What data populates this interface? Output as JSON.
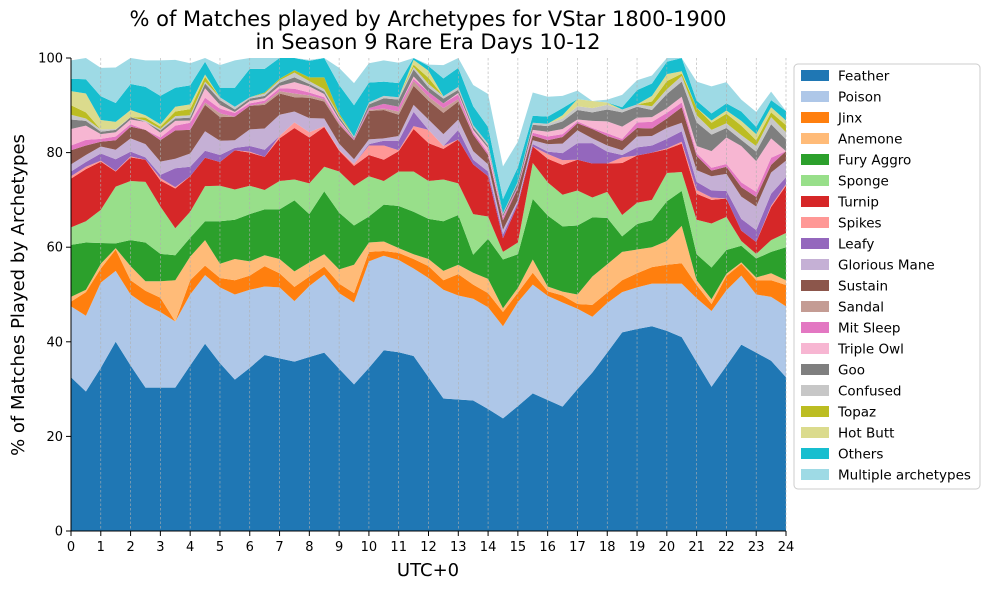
{
  "chart_data": {
    "type": "area",
    "title_lines": [
      "% of Matches played by Archetypes for VStar 1800-1900",
      "in Season 9 Rare Era Days 10-12"
    ],
    "xlabel": "UTC+0",
    "ylabel": "% of Matches Played by Archetypes",
    "xlim": [
      0,
      24
    ],
    "ylim": [
      0,
      100
    ],
    "x_ticks": [
      "0",
      "1",
      "2",
      "3",
      "4",
      "5",
      "6",
      "7",
      "8",
      "9",
      "10",
      "11",
      "12",
      "13",
      "14",
      "15",
      "16",
      "17",
      "18",
      "19",
      "20",
      "21",
      "22",
      "23",
      "24"
    ],
    "y_ticks": [
      "0",
      "20",
      "40",
      "60",
      "80",
      "100"
    ],
    "grid": "vertical dashed",
    "legend_position": "right",
    "x": [
      0,
      0.5,
      1,
      1.5,
      2,
      2.5,
      3,
      3.5,
      4,
      4.5,
      5,
      5.5,
      6,
      6.5,
      7,
      7.5,
      8,
      8.5,
      9,
      9.5,
      10,
      10.5,
      11,
      11.5,
      12,
      12.5,
      13,
      13.5,
      14,
      14.5,
      15,
      15.5,
      16,
      16.5,
      17,
      17.5,
      18,
      18.5,
      19,
      19.5,
      20,
      20.5,
      21,
      21.5,
      22,
      22.5,
      23,
      23.5,
      24
    ],
    "series": [
      {
        "name": "Feather",
        "color": "#1f77b4",
        "values": [
          32.5,
          29.5,
          34.5,
          40,
          35,
          30.3,
          30.3,
          30.3,
          35,
          39.6,
          35.5,
          32,
          34.5,
          37.2,
          36.5,
          35.8,
          36.8,
          37.7,
          34.3,
          31,
          34.5,
          38.2,
          37.8,
          37,
          32.5,
          28,
          27.8,
          27.6,
          25.8,
          23.8,
          26.4,
          29.1,
          27.7,
          26.3,
          30,
          33.5,
          37.7,
          42,
          42.7,
          43.3,
          42.3,
          41,
          35.7,
          30.5,
          34.9,
          39.4,
          37.7,
          36,
          32.5
        ]
      },
      {
        "name": "Poison",
        "color": "#aec7e8",
        "values": [
          15,
          16,
          18,
          15,
          15,
          17.5,
          16,
          14,
          15,
          14.5,
          16,
          18,
          16.5,
          14.5,
          15,
          12.8,
          15,
          16.5,
          16,
          17.3,
          22.5,
          20,
          19.5,
          18.5,
          21,
          23,
          22,
          21.5,
          21.5,
          19.5,
          22,
          23,
          22,
          22,
          17,
          11.8,
          10.5,
          8.5,
          8.8,
          9,
          10,
          11.3,
          13.5,
          16,
          16,
          14.6,
          12.3,
          13.5,
          15
        ]
      },
      {
        "name": "Jinx",
        "color": "#ff7f0e",
        "values": [
          1,
          5,
          3,
          4.5,
          3,
          3,
          3,
          0,
          3,
          2,
          2,
          3,
          3,
          4.3,
          3,
          3,
          2,
          1.7,
          2,
          2,
          2,
          1,
          1.5,
          2,
          2.5,
          2,
          4.5,
          3,
          3,
          3,
          2,
          2.5,
          1,
          1.5,
          1,
          2.5,
          2.2,
          2.5,
          3,
          3.5,
          4,
          4.3,
          2.8,
          1.5,
          3,
          2.5,
          3,
          3.5,
          4.5
        ]
      },
      {
        "name": "Anemone",
        "color": "#ffbb78",
        "values": [
          1,
          0.5,
          1,
          0.3,
          3,
          2,
          3.5,
          8.7,
          5,
          5.4,
          3,
          4.5,
          3,
          2.3,
          3,
          3.3,
          3,
          2.6,
          3,
          6,
          2,
          2,
          1,
          1,
          1.5,
          2,
          2,
          2.5,
          3,
          0.8,
          1,
          2.8,
          1,
          0.8,
          2,
          6,
          6,
          6,
          5,
          4.2,
          5,
          7.9,
          1,
          1,
          0.5,
          0.3,
          0.6,
          1.5,
          1
        ]
      },
      {
        "name": "Fury Aggro",
        "color": "#2ca02c",
        "values": [
          11,
          10,
          4.4,
          1,
          5.5,
          8.2,
          5.8,
          5.3,
          4,
          4,
          9,
          8.3,
          10,
          9.7,
          10.5,
          15,
          10.2,
          13.3,
          12,
          8.3,
          5.5,
          7.8,
          8.9,
          9,
          8.5,
          10.5,
          10.5,
          3.8,
          8.5,
          10.3,
          7.1,
          12.8,
          15,
          13.8,
          14.6,
          12.5,
          9.8,
          3.3,
          5.4,
          5.7,
          8.4,
          7.4,
          5.5,
          6.7,
          5,
          3.5,
          4,
          4.5,
          7
        ]
      },
      {
        "name": "Sponge",
        "color": "#98df8a",
        "values": [
          3.7,
          4.5,
          7,
          12,
          12.5,
          12.8,
          10,
          5.7,
          5.5,
          7.4,
          7.5,
          6.4,
          6,
          4.1,
          6,
          4.4,
          6.5,
          5.2,
          8.7,
          8.4,
          8.5,
          5,
          7.3,
          8.5,
          8,
          8.8,
          6.7,
          8.6,
          4.7,
          1.6,
          2.5,
          7.6,
          7,
          6.7,
          7.4,
          4.2,
          5.5,
          4.5,
          4.5,
          4.3,
          6,
          4,
          7.3,
          9.3,
          7,
          1,
          1,
          2.5,
          3
        ]
      },
      {
        "name": "Turnip",
        "color": "#d62728",
        "values": [
          10.3,
          11,
          10.2,
          3.2,
          5,
          4.7,
          5.5,
          8.4,
          7.5,
          6,
          5,
          8.3,
          7,
          7,
          9,
          10.9,
          9.7,
          8.4,
          4.4,
          4.2,
          4.5,
          4.5,
          4.3,
          9,
          8,
          6.5,
          9.3,
          10.5,
          8.5,
          2.9,
          8,
          3.5,
          5,
          6.3,
          6.5,
          7.2,
          6,
          11,
          10,
          10,
          5,
          6,
          5.5,
          5,
          3.9,
          2.2,
          2.5,
          7,
          10
        ]
      },
      {
        "name": "Spikes",
        "color": "#ff9896",
        "values": [
          0.5,
          0.5,
          0.2,
          0.1,
          0.2,
          0,
          0.5,
          0.3,
          0,
          0,
          0,
          0,
          0.2,
          0,
          0.5,
          1.2,
          1.1,
          0.2,
          0.2,
          0.4,
          2,
          3,
          0.2,
          0.6,
          2.8,
          0.6,
          0,
          0,
          0,
          0,
          0,
          0,
          1,
          1,
          0,
          0,
          0,
          1.2,
          0,
          0,
          0.2,
          0.4,
          0.8,
          0.5,
          0,
          0,
          0,
          0.3,
          0.3
        ]
      },
      {
        "name": "Leafy",
        "color": "#9467bd",
        "values": [
          1,
          1,
          1.5,
          2.5,
          1,
          0.5,
          0.7,
          4,
          2,
          1.5,
          1.5,
          0.5,
          1.2,
          1.5,
          0,
          0,
          0,
          0,
          0,
          0,
          0.3,
          1,
          2,
          3,
          0,
          0,
          2,
          1,
          1,
          0.8,
          0.5,
          0.5,
          0.5,
          1.5,
          3.5,
          4.3,
          2.5,
          0.5,
          1.7,
          1.5,
          2,
          2.2,
          1.7,
          1.5,
          1.6,
          2.5,
          2.5,
          2.5,
          1.5
        ]
      },
      {
        "name": "Glorious Mane",
        "color": "#c5b0d5",
        "values": [
          1.5,
          1.5,
          1.5,
          2,
          2.8,
          2.8,
          2.8,
          2,
          2.8,
          4.1,
          3,
          1.6,
          3.5,
          4.5,
          4.5,
          2.3,
          3,
          1.6,
          1.3,
          1,
          1,
          0.5,
          1,
          1.5,
          2.2,
          2.5,
          2.2,
          1.8,
          1.5,
          1,
          0.5,
          0.8,
          1.6,
          2,
          2.7,
          1,
          1.3,
          1,
          2.3,
          2,
          2.3,
          1.8,
          2.5,
          3,
          3.6,
          4.7,
          5,
          4.5,
          3.5
        ]
      },
      {
        "name": "Sustain",
        "color": "#8c564b",
        "values": [
          3,
          2,
          1,
          2,
          2.5,
          3,
          4.5,
          6,
          5,
          5.6,
          5,
          5,
          5,
          5,
          4.5,
          3,
          4.3,
          3.6,
          4,
          4,
          6,
          6,
          4.5,
          4,
          4,
          4.5,
          3.8,
          3.5,
          2,
          2,
          2.5,
          1,
          0.8,
          1.4,
          1.5,
          2,
          2,
          2,
          1.8,
          1.6,
          2,
          3.3,
          3,
          1.2,
          1.5,
          2,
          2,
          1.6,
          2
        ]
      },
      {
        "name": "Sandal",
        "color": "#c49c94",
        "values": [
          0,
          0,
          0,
          0,
          0,
          0,
          0,
          0,
          0,
          0.5,
          0.8,
          0,
          0,
          0.4,
          0.5,
          0.8,
          0.5,
          0.5,
          0.3,
          0,
          0.2,
          0.3,
          0.7,
          1,
          0.8,
          1,
          0.5,
          0,
          0,
          0,
          0,
          0,
          0,
          0,
          0,
          0,
          0,
          0,
          0,
          0,
          0,
          0,
          0,
          0,
          0,
          0,
          0,
          0,
          0
        ]
      },
      {
        "name": "Mit Sleep",
        "color": "#e377c2",
        "values": [
          1,
          1.2,
          0.6,
          0.8,
          0.5,
          0,
          0.6,
          1,
          1.5,
          1,
          1,
          0.8,
          0.5,
          0.5,
          0.6,
          1,
          0.6,
          0.4,
          0.4,
          0.3,
          0.4,
          1,
          1,
          0.5,
          1,
          1,
          1,
          0.5,
          0.5,
          0.6,
          0.3,
          0.6,
          0.8,
          0.6,
          0.4,
          0.2,
          0.6,
          0.4,
          1.2,
          1.4,
          1.2,
          1,
          0.6,
          0.6,
          0.6,
          1,
          1.1,
          1.5,
          0
        ]
      },
      {
        "name": "Triple Owl",
        "color": "#f7b6d2",
        "values": [
          3.5,
          3,
          1,
          0.9,
          1,
          1.7,
          1,
          1,
          0.5,
          2,
          0.8,
          0.2,
          0.5,
          0.5,
          0.5,
          1.4,
          1.3,
          0.7,
          0.4,
          0,
          0,
          0,
          0,
          0.5,
          0,
          0,
          0.3,
          0.5,
          1,
          0.2,
          0,
          0.6,
          1,
          1.1,
          0.4,
          1.5,
          2.5,
          2.6,
          1,
          1,
          1,
          1.2,
          1.5,
          3.5,
          5.6,
          7.7,
          6.5,
          4.1,
          0
        ]
      },
      {
        "name": "Goo",
        "color": "#7f7f7f",
        "values": [
          2,
          1,
          0.5,
          0.5,
          0.5,
          0,
          0.5,
          0.5,
          0.6,
          1,
          1,
          0.5,
          0.5,
          0.5,
          0.7,
          1,
          0.5,
          0.5,
          0.5,
          0.2,
          0.8,
          1.2,
          1.5,
          1.5,
          1,
          1,
          0.7,
          0.5,
          0.4,
          0.4,
          0.8,
          1.1,
          1.2,
          1.6,
          2,
          1.8,
          2.5,
          3,
          2.3,
          1.5,
          3,
          3.2,
          5,
          3.5,
          2,
          1.3,
          2,
          3,
          2.5
        ]
      },
      {
        "name": "Confused",
        "color": "#c7c7c7",
        "values": [
          1,
          0.5,
          0.5,
          0.2,
          0,
          0.3,
          0.3,
          0.5,
          0.5,
          0.4,
          0.6,
          0.6,
          0.3,
          0.5,
          0.5,
          1,
          0.6,
          0.5,
          0.3,
          0.3,
          0.4,
          0.5,
          0.5,
          0.5,
          0.7,
          0.5,
          0.6,
          0.5,
          0.5,
          0.3,
          0.3,
          0.4,
          0.5,
          0.6,
          0.8,
          0.9,
          1,
          0.6,
          0.5,
          0.8,
          1,
          1.2,
          1.5,
          1,
          1,
          1,
          1.2,
          1.5,
          1.5
        ]
      },
      {
        "name": "Topaz",
        "color": "#bcbd22",
        "values": [
          2,
          1.3,
          0,
          0,
          0,
          0.6,
          0.5,
          1,
          1.3,
          1,
          0,
          0,
          0,
          0.2,
          0.3,
          0.5,
          0.8,
          2.5,
          0.5,
          0,
          0,
          0,
          0,
          0.5,
          1.3,
          0,
          0,
          0,
          0,
          0,
          0,
          0,
          0,
          0,
          0,
          0,
          0,
          0,
          0,
          1,
          1.7,
          0.5,
          1.6,
          1.5,
          2,
          2,
          1.2,
          1,
          1.5
        ]
      },
      {
        "name": "Hot Butt",
        "color": "#dbdb8d",
        "values": [
          3,
          4,
          2,
          1.5,
          1.5,
          0.5,
          0.5,
          1,
          1,
          0.5,
          0,
          0,
          0,
          0,
          0,
          0,
          0,
          0,
          0,
          0,
          0,
          0,
          0,
          1,
          1.5,
          0,
          0,
          0,
          0,
          0,
          0,
          0,
          0,
          0.7,
          1.5,
          1.5,
          0.5,
          0,
          0,
          1.2,
          1.5,
          0.5,
          0,
          0.5,
          0.7,
          1,
          1.3,
          1.1,
          1
        ]
      },
      {
        "name": "Others",
        "color": "#17becf",
        "values": [
          2.6,
          3,
          5,
          4,
          5.5,
          6,
          6,
          4,
          4,
          2.7,
          2,
          4,
          6,
          5,
          6,
          4,
          3.5,
          4.2,
          6,
          6.6,
          4.2,
          3,
          3,
          1.5,
          1,
          3.8,
          4,
          4,
          3.5,
          3,
          3,
          1.5,
          1.5,
          1.5,
          0,
          0,
          0,
          0.5,
          3,
          2.6,
          2.6,
          4,
          1.5,
          1.5,
          1.5,
          2,
          1.5,
          1.5,
          2
        ]
      },
      {
        "name": "Multiple archetypes",
        "color": "#9edae5",
        "values": [
          3.9,
          4.5,
          6,
          7.5,
          5.5,
          5.6,
          7.5,
          5.9,
          4.7,
          3.4,
          4.8,
          5.8,
          5.1,
          3.9,
          2,
          1,
          0.2,
          0,
          3.6,
          4.7,
          4.1,
          4.5,
          4.3,
          0.4,
          0.3,
          2.8,
          2.7,
          4.5,
          7,
          6.9,
          5.4,
          4.9,
          4.2,
          2.6,
          1.8,
          0,
          0.6,
          2.6,
          2.1,
          1.7,
          1.1,
          0,
          4,
          5.7,
          4.5,
          2.5,
          3.2,
          1.8,
          0
        ]
      }
    ]
  }
}
